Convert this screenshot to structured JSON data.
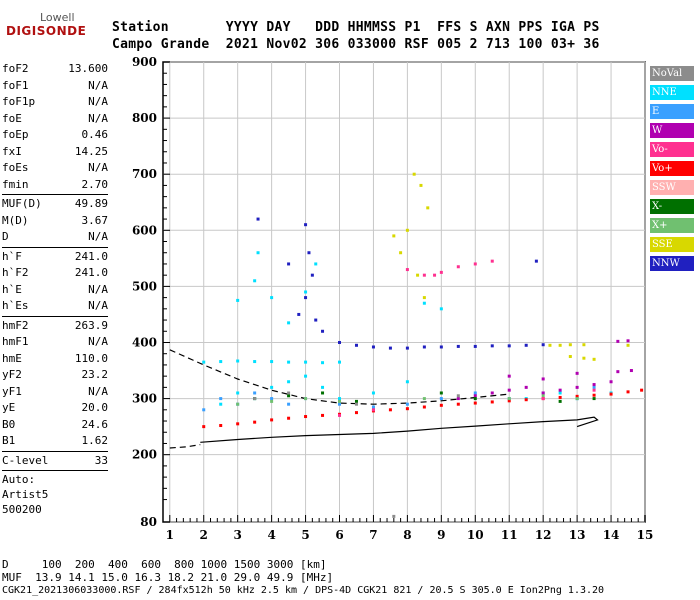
{
  "logo": {
    "line1": "Lowell",
    "line2": "DIGISONDE"
  },
  "header": {
    "line1": "Station       YYYY DAY   DDD HHMMSS P1  FFS S AXN PPS IGA PS",
    "line2": "Campo Grande  2021 Nov02 306 033000 RSF 005 2 713 100 03+ 36"
  },
  "parameters": [
    {
      "label": "foF2",
      "value": "13.600"
    },
    {
      "label": "foF1",
      "value": "N/A"
    },
    {
      "label": "foF1p",
      "value": "N/A"
    },
    {
      "label": "foE",
      "value": "N/A"
    },
    {
      "label": "foEp",
      "value": "0.46"
    },
    {
      "label": "fxI",
      "value": "14.25"
    },
    {
      "label": "foEs",
      "value": "N/A"
    },
    {
      "label": "fmin",
      "value": "2.70"
    },
    {
      "label": "MUF(D)",
      "value": "49.89"
    },
    {
      "label": "M(D)",
      "value": "3.67"
    },
    {
      "label": "D",
      "value": "N/A"
    },
    {
      "label": "h`F",
      "value": "241.0"
    },
    {
      "label": "h`F2",
      "value": "241.0"
    },
    {
      "label": "h`E",
      "value": "N/A"
    },
    {
      "label": "h`Es",
      "value": "N/A"
    },
    {
      "label": "hmF2",
      "value": "263.9"
    },
    {
      "label": "hmF1",
      "value": "N/A"
    },
    {
      "label": "hmE",
      "value": "110.0"
    },
    {
      "label": "yF2",
      "value": "23.2"
    },
    {
      "label": "yF1",
      "value": "N/A"
    },
    {
      "label": "yE",
      "value": "20.0"
    },
    {
      "label": "B0",
      "value": "24.6"
    },
    {
      "label": "B1",
      "value": "1.62"
    },
    {
      "label": "C-level",
      "value": "33"
    }
  ],
  "auto": {
    "line1": "Auto:",
    "line2": "Artist5",
    "line3": "500200"
  },
  "legend": [
    {
      "label": "NoVal",
      "color": "#8c8c8c"
    },
    {
      "label": "NNE",
      "color": "#00e0ff"
    },
    {
      "label": "E",
      "color": "#3aa0ff"
    },
    {
      "label": "W",
      "color": "#b000b0"
    },
    {
      "label": "Vo-",
      "color": "#ff3090"
    },
    {
      "label": "Vo+",
      "color": "#ff0000"
    },
    {
      "label": "SSW",
      "color": "#ffb0b0"
    },
    {
      "label": "X-",
      "color": "#007000"
    },
    {
      "label": "X+",
      "color": "#70c070"
    },
    {
      "label": "SSE",
      "color": "#d8d800"
    },
    {
      "label": "NNW",
      "color": "#2020c0"
    }
  ],
  "bottom": {
    "line1": "D     100  200  400  600  800 1000 1500 3000 [km]",
    "line2": "MUF  13.9 14.1 15.0 16.3 18.2 21.0 29.0 49.9 [MHz]",
    "line3": "CGK21_2021306033000.RSF / 284fx512h 50 kHz 2.5 km / DPS-4D CGK21 821 / 20.5 S 305.0 E Ion2Png 1.3.20"
  },
  "chart_data": {
    "type": "scatter",
    "title": "",
    "xlabel": "",
    "ylabel": "",
    "xlim": [
      0.8,
      15
    ],
    "ylim": [
      80,
      900
    ],
    "x_ticks": [
      1,
      2,
      3,
      4,
      5,
      6,
      7,
      8,
      9,
      10,
      11,
      12,
      13,
      14,
      15
    ],
    "y_ticks": [
      80,
      200,
      300,
      400,
      500,
      600,
      700,
      800,
      900
    ],
    "grid": true,
    "series": [
      {
        "name": "NNE",
        "color": "#00e0ff",
        "points": [
          [
            2.0,
            365
          ],
          [
            2.5,
            366
          ],
          [
            3.0,
            367
          ],
          [
            3.5,
            366
          ],
          [
            4.0,
            366
          ],
          [
            4.5,
            365
          ],
          [
            5.0,
            365
          ],
          [
            5.5,
            364
          ],
          [
            6.0,
            365
          ],
          [
            3.0,
            475
          ],
          [
            3.5,
            510
          ],
          [
            4.0,
            480
          ],
          [
            4.5,
            435
          ],
          [
            5.0,
            490
          ],
          [
            5.3,
            540
          ],
          [
            3.6,
            560
          ],
          [
            2.5,
            290
          ],
          [
            3.0,
            310
          ],
          [
            3.5,
            300
          ],
          [
            4.0,
            320
          ],
          [
            4.5,
            330
          ],
          [
            5.0,
            340
          ],
          [
            5.5,
            320
          ],
          [
            6.0,
            300
          ],
          [
            7.0,
            310
          ],
          [
            8.0,
            330
          ],
          [
            8.5,
            470
          ],
          [
            9.0,
            460
          ],
          [
            11.5,
            300
          ],
          [
            12.5,
            310
          ],
          [
            13.0,
            300
          ],
          [
            14.0,
            310
          ]
        ]
      },
      {
        "name": "E",
        "color": "#3aa0ff",
        "points": [
          [
            2.0,
            280
          ],
          [
            2.5,
            300
          ],
          [
            3.0,
            290
          ],
          [
            3.5,
            310
          ],
          [
            4.0,
            300
          ],
          [
            4.5,
            290
          ],
          [
            5.0,
            300
          ],
          [
            6.0,
            290
          ],
          [
            7.0,
            285
          ],
          [
            8.0,
            290
          ],
          [
            9.0,
            300
          ],
          [
            10.0,
            310
          ],
          [
            11.0,
            300
          ],
          [
            12.0,
            310
          ],
          [
            13.0,
            300
          ],
          [
            13.5,
            320
          ]
        ]
      },
      {
        "name": "W",
        "color": "#b000b0",
        "points": [
          [
            9.5,
            300
          ],
          [
            10.0,
            305
          ],
          [
            10.5,
            310
          ],
          [
            11.0,
            315
          ],
          [
            11.5,
            320
          ],
          [
            12.0,
            310
          ],
          [
            12.5,
            315
          ],
          [
            13.0,
            320
          ],
          [
            13.5,
            325
          ],
          [
            14.0,
            330
          ],
          [
            11.0,
            340
          ],
          [
            12.0,
            335
          ],
          [
            13.0,
            345
          ],
          [
            14.2,
            348
          ],
          [
            14.6,
            350
          ],
          [
            14.2,
            402
          ],
          [
            14.5,
            403
          ]
        ]
      },
      {
        "name": "Vo+",
        "color": "#ff0000",
        "points": [
          [
            2.0,
            250
          ],
          [
            2.5,
            252
          ],
          [
            3.0,
            255
          ],
          [
            3.5,
            258
          ],
          [
            4.0,
            262
          ],
          [
            4.5,
            265
          ],
          [
            5.0,
            268
          ],
          [
            5.5,
            270
          ],
          [
            6.0,
            272
          ],
          [
            6.5,
            275
          ],
          [
            7.0,
            278
          ],
          [
            7.5,
            280
          ],
          [
            8.0,
            282
          ],
          [
            8.5,
            285
          ],
          [
            9.0,
            288
          ],
          [
            9.5,
            290
          ],
          [
            10.0,
            292
          ],
          [
            10.5,
            294
          ],
          [
            11.0,
            296
          ],
          [
            11.5,
            298
          ],
          [
            12.0,
            300
          ],
          [
            12.5,
            302
          ],
          [
            13.0,
            304
          ],
          [
            13.5,
            306
          ],
          [
            14.0,
            308
          ],
          [
            14.5,
            312
          ],
          [
            14.9,
            315
          ]
        ]
      },
      {
        "name": "SSE",
        "color": "#d8d800",
        "points": [
          [
            8.2,
            700
          ],
          [
            8.4,
            680
          ],
          [
            8.6,
            640
          ],
          [
            8.0,
            600
          ],
          [
            7.8,
            560
          ],
          [
            8.3,
            520
          ],
          [
            8.5,
            480
          ],
          [
            7.6,
            590
          ],
          [
            12.2,
            395
          ],
          [
            12.5,
            395
          ],
          [
            12.8,
            396
          ],
          [
            13.2,
            396
          ],
          [
            12.8,
            375
          ],
          [
            13.2,
            372
          ],
          [
            13.5,
            370
          ],
          [
            14.5,
            395
          ]
        ]
      },
      {
        "name": "NNW",
        "color": "#2020c0",
        "points": [
          [
            3.6,
            620
          ],
          [
            4.5,
            540
          ],
          [
            5.0,
            610
          ],
          [
            5.1,
            560
          ],
          [
            5.2,
            520
          ],
          [
            5.0,
            480
          ],
          [
            4.8,
            450
          ],
          [
            5.3,
            440
          ],
          [
            5.5,
            420
          ],
          [
            6.0,
            400
          ],
          [
            6.5,
            395
          ],
          [
            7.0,
            392
          ],
          [
            7.5,
            390
          ],
          [
            8.0,
            390
          ],
          [
            8.5,
            392
          ],
          [
            9.0,
            392
          ],
          [
            9.5,
            393
          ],
          [
            10.0,
            393
          ],
          [
            10.5,
            394
          ],
          [
            11.0,
            394
          ],
          [
            11.5,
            395
          ],
          [
            12.0,
            396
          ],
          [
            11.8,
            545
          ]
        ]
      },
      {
        "name": "X+",
        "color": "#70c070",
        "points": [
          [
            3.0,
            290
          ],
          [
            4.0,
            295
          ],
          [
            5.0,
            300
          ],
          [
            6.0,
            295
          ],
          [
            8.5,
            300
          ],
          [
            11.0,
            300
          ],
          [
            12.0,
            305
          ],
          [
            13.0,
            300
          ]
        ]
      },
      {
        "name": "X-",
        "color": "#007000",
        "points": [
          [
            3.5,
            300
          ],
          [
            4.5,
            305
          ],
          [
            5.5,
            310
          ],
          [
            6.5,
            295
          ],
          [
            9.0,
            310
          ],
          [
            10.0,
            300
          ],
          [
            12.5,
            295
          ],
          [
            13.5,
            300
          ]
        ]
      },
      {
        "name": "Vo-",
        "color": "#ff3090",
        "points": [
          [
            8.0,
            530
          ],
          [
            8.5,
            520
          ],
          [
            8.8,
            520
          ],
          [
            9.0,
            525
          ],
          [
            9.5,
            535
          ],
          [
            10.0,
            540
          ],
          [
            10.5,
            545
          ],
          [
            6.0,
            270
          ],
          [
            7.0,
            280
          ],
          [
            12.0,
            300
          ],
          [
            13.5,
            315
          ]
        ]
      },
      {
        "name": "NoVal",
        "color": "#8c8c8c",
        "points": [
          [
            7.6,
            90
          ],
          [
            3.5,
            300
          ],
          [
            4.5,
            310
          ],
          [
            6.5,
            290
          ],
          [
            9.5,
            305
          ]
        ]
      }
    ],
    "profile_curves": [
      {
        "style": "solid",
        "points": [
          [
            1.9,
            222
          ],
          [
            3.0,
            227
          ],
          [
            4.0,
            231
          ],
          [
            5.0,
            234
          ],
          [
            6.0,
            236
          ],
          [
            7.0,
            238
          ],
          [
            8.0,
            242
          ],
          [
            9.0,
            247
          ],
          [
            10.0,
            251
          ],
          [
            11.0,
            255
          ],
          [
            12.0,
            259
          ],
          [
            13.0,
            262
          ],
          [
            13.5,
            267
          ],
          [
            13.6,
            262
          ],
          [
            13.0,
            250
          ]
        ]
      },
      {
        "style": "dashed",
        "points": [
          [
            1.0,
            212
          ],
          [
            1.5,
            214
          ],
          [
            1.9,
            218
          ]
        ]
      },
      {
        "style": "dashed",
        "points": [
          [
            1.0,
            387
          ],
          [
            2.0,
            360
          ],
          [
            3.0,
            335
          ],
          [
            4.0,
            315
          ],
          [
            5.0,
            300
          ],
          [
            6.0,
            292
          ],
          [
            7.0,
            290
          ],
          [
            8.0,
            292
          ],
          [
            9.0,
            296
          ],
          [
            10.0,
            302
          ],
          [
            11.0,
            308
          ]
        ]
      }
    ]
  }
}
